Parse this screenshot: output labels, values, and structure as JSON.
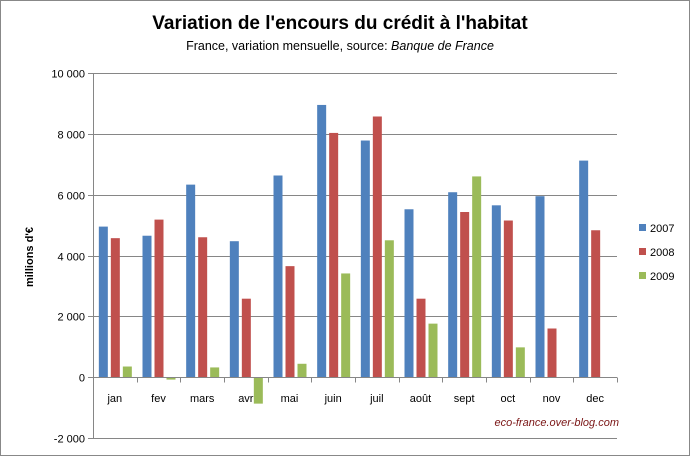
{
  "chart_data": {
    "type": "bar",
    "title": "Variation de l'encours du crédit à l'habitat",
    "subtitle": {
      "prefix": "France, variation mensuelle, source: ",
      "source": "Banque de France"
    },
    "ylabel": "millions d'€",
    "xlabel": "",
    "categories": [
      "jan",
      "fev",
      "mars",
      "avr",
      "mai",
      "juin",
      "juil",
      "août",
      "sept",
      "oct",
      "nov",
      "dec"
    ],
    "series": [
      {
        "name": "2007",
        "color": "#4f81bd",
        "values": [
          4950,
          4650,
          6330,
          4470,
          6630,
          8950,
          7780,
          5520,
          6080,
          5650,
          5950,
          7120
        ]
      },
      {
        "name": "2008",
        "color": "#c0504d",
        "values": [
          4570,
          5180,
          4600,
          2580,
          3650,
          8030,
          8570,
          2580,
          5430,
          5150,
          1600,
          4830
        ]
      },
      {
        "name": "2009",
        "color": "#9bbb59",
        "values": [
          350,
          -80,
          320,
          -870,
          440,
          3410,
          4500,
          1760,
          6600,
          980,
          null,
          null
        ]
      }
    ],
    "ylim": [
      -2000,
      10000
    ],
    "yticks": [
      -2000,
      0,
      2000,
      4000,
      6000,
      8000,
      10000
    ],
    "ytick_labels": [
      "-2 000",
      "0",
      "2 000",
      "4 000",
      "6 000",
      "8 000",
      "10 000"
    ],
    "grid": true,
    "legend_position": "right",
    "annotation": "eco-france.over-blog.com"
  }
}
